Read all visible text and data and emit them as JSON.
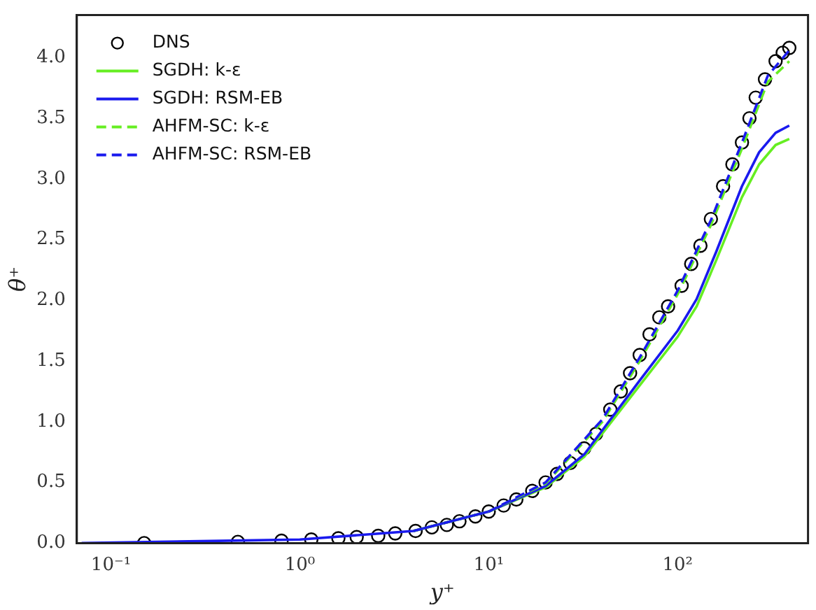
{
  "chart_data": {
    "type": "line",
    "xlabel": "y⁺",
    "ylabel": "θ⁺",
    "log": "x",
    "xlim": [
      0.066,
      490
    ],
    "xticks": [
      {
        "value": 0.1,
        "label": "10⁻¹"
      },
      {
        "value": 1,
        "label": "10⁰"
      },
      {
        "value": 10,
        "label": "10¹"
      },
      {
        "value": 100,
        "label": "10²"
      }
    ],
    "ylim": [
      0,
      4.35
    ],
    "yticks": [
      {
        "value": 0,
        "label": "0.0"
      },
      {
        "value": 0.5,
        "label": "0.5"
      },
      {
        "value": 1,
        "label": "1.0"
      },
      {
        "value": 1.5,
        "label": "1.5"
      },
      {
        "value": 2,
        "label": "2.0"
      },
      {
        "value": 2.5,
        "label": "2.5"
      },
      {
        "value": 3,
        "label": "3.0"
      },
      {
        "value": 3.5,
        "label": "3.5"
      },
      {
        "value": 4,
        "label": "4.0"
      }
    ],
    "grid": false,
    "legend": "top left",
    "series": [
      {
        "name": "DNS",
        "type": "scatter",
        "marker": "circle",
        "color": "#000000",
        "x": [
          0.15,
          0.47,
          0.8,
          1.15,
          1.6,
          2,
          2.6,
          3.2,
          4.1,
          5,
          6,
          7,
          8.5,
          10,
          12,
          14,
          17,
          20,
          23,
          27,
          32,
          37,
          44,
          50,
          56,
          63,
          71,
          80,
          89,
          105,
          118,
          132,
          150,
          174,
          195,
          219,
          240,
          259,
          290,
          330,
          360,
          390
        ],
        "values": [
          0.0,
          0.01,
          0.02,
          0.03,
          0.04,
          0.05,
          0.06,
          0.08,
          0.1,
          0.13,
          0.15,
          0.18,
          0.22,
          0.26,
          0.31,
          0.36,
          0.43,
          0.5,
          0.57,
          0.66,
          0.78,
          0.9,
          1.1,
          1.25,
          1.4,
          1.55,
          1.72,
          1.86,
          1.95,
          2.12,
          2.3,
          2.45,
          2.67,
          2.94,
          3.12,
          3.3,
          3.5,
          3.67,
          3.82,
          3.97,
          4.04,
          4.08
        ]
      },
      {
        "name": "SGDH: k-ε",
        "line_style": "solid",
        "color": "#66ee22",
        "x": [
          4,
          10,
          20,
          32,
          63,
          100,
          126,
          160,
          219,
          270,
          330,
          390
        ],
        "values": [
          0.1,
          0.26,
          0.46,
          0.71,
          1.3,
          1.7,
          1.95,
          2.33,
          2.85,
          3.12,
          3.28,
          3.33
        ]
      },
      {
        "name": "SGDH: RSM-EB",
        "line_style": "solid",
        "color": "#1a1aee",
        "x": [
          0.07,
          1,
          4,
          10,
          20,
          32,
          63,
          100,
          126,
          160,
          219,
          270,
          330,
          390
        ],
        "values": [
          0,
          0.03,
          0.1,
          0.26,
          0.47,
          0.73,
          1.34,
          1.75,
          2.01,
          2.4,
          2.94,
          3.22,
          3.38,
          3.44
        ]
      },
      {
        "name": "AHFM-SC: k-ε",
        "line_style": "dashed",
        "color": "#66ee22",
        "x": [
          4,
          10,
          20,
          40,
          63,
          100,
          150,
          219,
          300,
          390
        ],
        "values": [
          0.1,
          0.26,
          0.49,
          1.0,
          1.5,
          2.05,
          2.62,
          3.25,
          3.8,
          3.97
        ]
      },
      {
        "name": "AHFM-SC: RSM-EB",
        "line_style": "dashed",
        "color": "#1a1aee",
        "x": [
          4,
          10,
          20,
          40,
          63,
          100,
          150,
          219,
          300,
          390
        ],
        "values": [
          0.1,
          0.26,
          0.5,
          1.02,
          1.53,
          2.08,
          2.66,
          3.3,
          3.85,
          4.06
        ]
      }
    ]
  }
}
